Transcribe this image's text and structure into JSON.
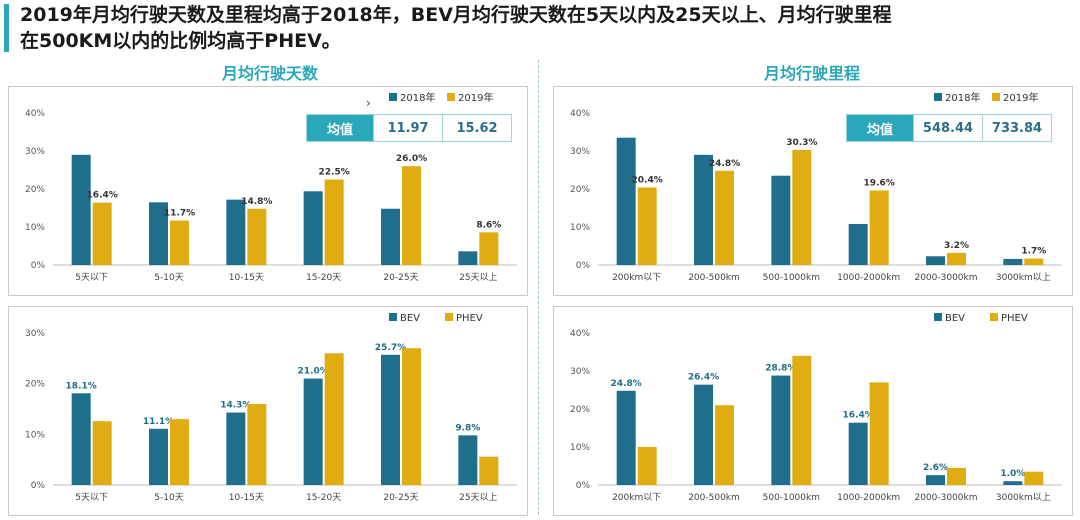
{
  "headline": {
    "line1": "2019年月均行驶天数及里程均高于2018年，BEV月均行驶天数在5天以内及25天以上、月均行驶里程",
    "line2": "在500KM以内的比例均高于PHEV。"
  },
  "column_titles": {
    "left": "月均行驶天数",
    "right": "月均行驶里程"
  },
  "colors": {
    "accent": "#2aa7b8",
    "series_a": "#1f6e8c",
    "series_b": "#e0ac12",
    "label": "#1f6e8c"
  },
  "averages": {
    "left": {
      "label": "均值",
      "v2018": "11.97",
      "v2019": "15.62"
    },
    "right": {
      "label": "均值",
      "v2018": "548.44",
      "v2019": "733.84"
    }
  },
  "chart_data": [
    {
      "id": "days-year",
      "type": "bar",
      "categories": [
        "5天以下",
        "5-10天",
        "10-15天",
        "15-20天",
        "20-25天",
        "25天以上"
      ],
      "series": [
        {
          "name": "2018年",
          "values": [
            29.0,
            16.5,
            17.2,
            19.4,
            14.8,
            3.6
          ],
          "labels": []
        },
        {
          "name": "2019年",
          "values": [
            16.4,
            11.7,
            14.8,
            22.5,
            26.0,
            8.6
          ],
          "labels": [
            "16.4%",
            "11.7%",
            "14.8%",
            "22.5%",
            "26.0%",
            "8.6%"
          ]
        }
      ],
      "labeled_series": 1,
      "ylim": [
        0,
        40
      ],
      "yticks": [
        "0%",
        "10%",
        "20%",
        "30%",
        "40%"
      ],
      "ytick_values": [
        0,
        10,
        20,
        30,
        40
      ],
      "legend": "top-right"
    },
    {
      "id": "km-year",
      "type": "bar",
      "categories": [
        "200km以下",
        "200-500km",
        "500-1000km",
        "1000-2000km",
        "2000-3000km",
        "3000km以上"
      ],
      "series": [
        {
          "name": "2018年",
          "values": [
            33.5,
            29.0,
            23.5,
            10.8,
            2.3,
            1.6
          ],
          "labels": []
        },
        {
          "name": "2019年",
          "values": [
            20.4,
            24.8,
            30.3,
            19.6,
            3.2,
            1.7
          ],
          "labels": [
            "20.4%",
            "24.8%",
            "30.3%",
            "19.6%",
            "3.2%",
            "1.7%"
          ]
        }
      ],
      "labeled_series": 1,
      "ylim": [
        0,
        40
      ],
      "yticks": [
        "0%",
        "10%",
        "20%",
        "30%",
        "40%"
      ],
      "ytick_values": [
        0,
        10,
        20,
        30,
        40
      ],
      "legend": "top-right"
    },
    {
      "id": "days-type",
      "type": "bar",
      "categories": [
        "5天以下",
        "5-10天",
        "10-15天",
        "15-20天",
        "20-25天",
        "25天以上"
      ],
      "series": [
        {
          "name": "BEV",
          "values": [
            18.1,
            11.1,
            14.3,
            21.0,
            25.7,
            9.8
          ],
          "labels": [
            "18.1%",
            "11.1%",
            "14.3%",
            "21.0%",
            "25.7%",
            "9.8%"
          ]
        },
        {
          "name": "PHEV",
          "values": [
            12.6,
            13.0,
            16.0,
            26.0,
            27.0,
            5.6
          ],
          "labels": []
        }
      ],
      "labeled_series": 0,
      "ylim": [
        0,
        30
      ],
      "yticks": [
        "0%",
        "10%",
        "20%",
        "30%"
      ],
      "ytick_values": [
        0,
        10,
        20,
        30
      ],
      "legend": "top-right"
    },
    {
      "id": "km-type",
      "type": "bar",
      "categories": [
        "200km以下",
        "200-500km",
        "500-1000km",
        "1000-2000km",
        "2000-3000km",
        "3000km以上"
      ],
      "series": [
        {
          "name": "BEV",
          "values": [
            24.8,
            26.4,
            28.8,
            16.4,
            2.6,
            1.0
          ],
          "labels": [
            "24.8%",
            "26.4%",
            "28.8%",
            "16.4%",
            "2.6%",
            "1.0%"
          ]
        },
        {
          "name": "PHEV",
          "values": [
            10.0,
            21.0,
            34.0,
            27.0,
            4.5,
            3.5
          ],
          "labels": []
        }
      ],
      "labeled_series": 0,
      "ylim": [
        0,
        40
      ],
      "yticks": [
        "0%",
        "10%",
        "20%",
        "30%",
        "40%"
      ],
      "ytick_values": [
        0,
        10,
        20,
        30,
        40
      ],
      "legend": "top-right"
    }
  ]
}
